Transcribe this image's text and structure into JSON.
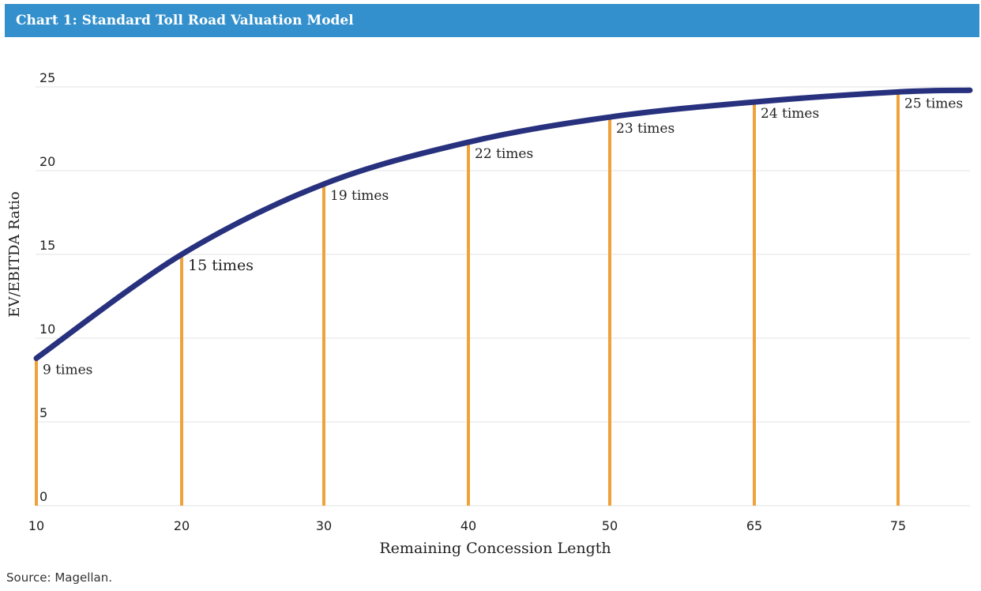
{
  "title": "Chart 1: Standard Toll Road Valuation Model",
  "source": "Source: Magellan.",
  "colors": {
    "title_bar": "#3390cc",
    "curve": "#27317e",
    "bars": "#f0a23a",
    "grid": "#e3e3e3"
  },
  "chart_data": {
    "type": "line",
    "xlabel": "Remaining Concession Length",
    "ylabel": "EV/EBITDA Ratio",
    "ylim": [
      0,
      25
    ],
    "y_ticks": [
      "0",
      "5",
      "10",
      "15",
      "20",
      "25"
    ],
    "x_ticks": [
      "10",
      "20",
      "30",
      "40",
      "50",
      "65",
      "75"
    ],
    "grid": "horizontal",
    "series": [
      {
        "values": [
          8.8,
          15,
          19.2,
          21.7,
          23.2,
          24.1,
          24.7
        ]
      }
    ],
    "bars": [
      8.8,
      15,
      19.2,
      21.7,
      23.2,
      24.1,
      24.7
    ],
    "annotations": [
      "9 times",
      "15 times",
      "19 times",
      "22 times",
      "23 times",
      "24 times",
      "25 times"
    ]
  }
}
